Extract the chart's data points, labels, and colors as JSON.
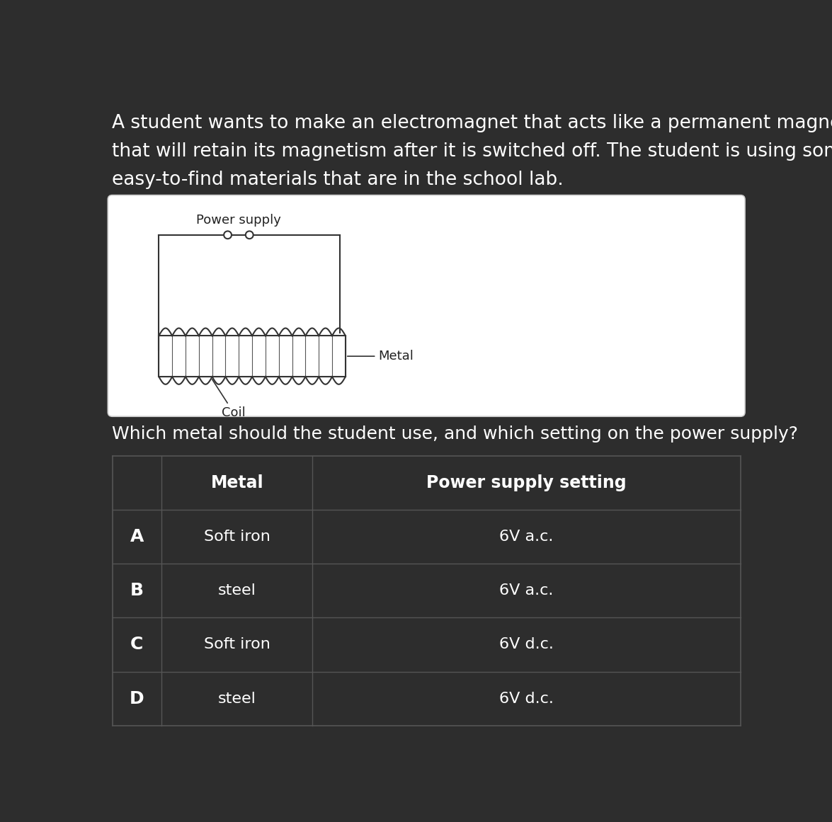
{
  "bg_color": "#2d2d2d",
  "white_box_color": "#ffffff",
  "text_color": "#ffffff",
  "dark_text_color": "#222222",
  "intro_text_lines": [
    "A student wants to make an electromagnet that acts like a permanent magnet",
    "that will retain its magnetism after it is switched off. The student is using some",
    "easy-to-find materials that are in the school lab."
  ],
  "question_text": "Which metal should the student use, and which setting on the power supply?",
  "diagram_label_power": "Power supply",
  "diagram_label_metal": "Metal",
  "diagram_label_coil": "Coil",
  "table_header_col2": "Metal",
  "table_header_col3": "Power supply setting",
  "table_rows": [
    [
      "A",
      "Soft iron",
      "6V a.c."
    ],
    [
      "B",
      "steel",
      "6V a.c."
    ],
    [
      "C",
      "Soft iron",
      "6V d.c."
    ],
    [
      "D",
      "steel",
      "6V d.c."
    ]
  ],
  "table_line_color": "#555555",
  "intro_font_size": 19,
  "question_font_size": 18,
  "header_font_size": 17,
  "body_font_size": 16,
  "diagram_font_size": 13
}
